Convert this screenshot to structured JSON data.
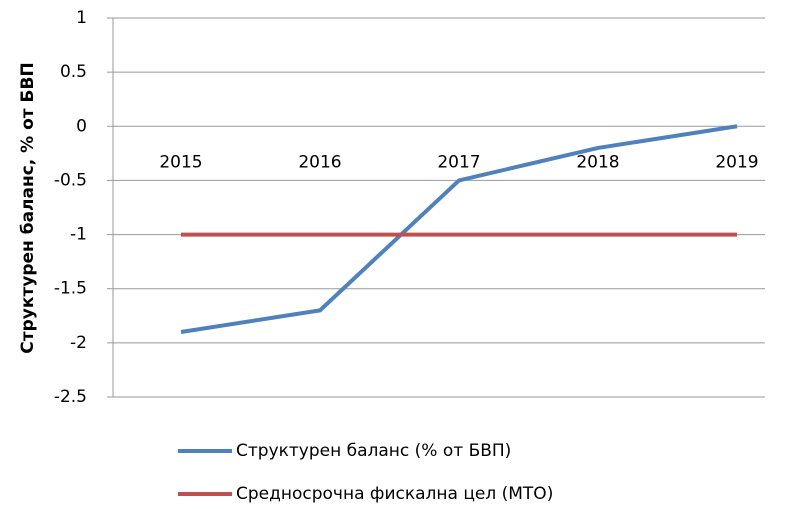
{
  "chart_data": {
    "type": "line",
    "y_label": "Структурен баланс, % от БВП",
    "categories": [
      "2015",
      "2016",
      "2017",
      "2018",
      "2019"
    ],
    "series": [
      {
        "name": "Структурен баланс (% от БВП)",
        "color": "#4f81bd",
        "values": [
          -1.9,
          -1.7,
          -0.5,
          -0.2,
          0
        ]
      },
      {
        "name": "Средносрочна фискална цел (MTO)",
        "color": "#c0504d",
        "values": [
          -1,
          -1,
          -1,
          -1,
          -1
        ]
      }
    ],
    "ylim": [
      -2.5,
      1
    ],
    "yticks": [
      -2.5,
      -2,
      -1.5,
      -1,
      -0.5,
      0,
      0.5,
      1
    ],
    "grid": true,
    "legend": "bottom"
  }
}
